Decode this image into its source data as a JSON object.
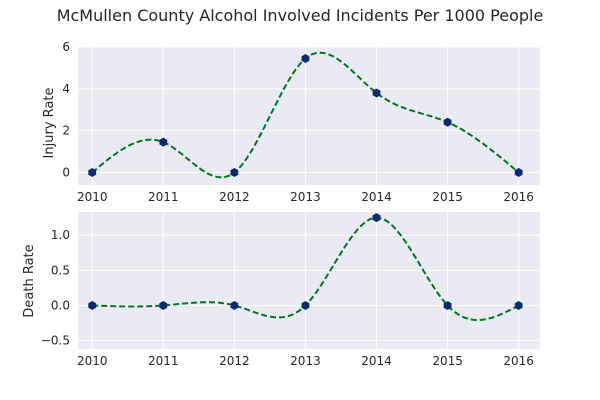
{
  "figure": {
    "title": "McMullen County Alcohol Involved Incidents Per 1000 People"
  },
  "colors": {
    "plot_background": "#eaeaf2",
    "curve": "#00741f",
    "marker": "#0b2a6e",
    "text": "#262626"
  },
  "chart_data": [
    {
      "type": "line",
      "style": "smoothed dashed curve with hexagon markers",
      "x": [
        2010,
        2011,
        2012,
        2013,
        2014,
        2015,
        2016
      ],
      "values": [
        0,
        1.45,
        0,
        5.45,
        3.8,
        2.4,
        0
      ],
      "xticks": [
        "2010",
        "2011",
        "2012",
        "2013",
        "2014",
        "2015",
        "2016"
      ],
      "yticks": [
        "0",
        "2",
        "4",
        "6"
      ],
      "ylabel": "Injury Rate",
      "xlim": [
        2009.8,
        2016.3
      ],
      "ylim": [
        -0.6,
        6.0
      ],
      "grid": true
    },
    {
      "type": "line",
      "style": "smoothed dashed curve with hexagon markers",
      "x": [
        2010,
        2011,
        2012,
        2013,
        2014,
        2015,
        2016
      ],
      "values": [
        0,
        0,
        0,
        0,
        1.25,
        0,
        0
      ],
      "xticks": [
        "2010",
        "2011",
        "2012",
        "2013",
        "2014",
        "2015",
        "2016"
      ],
      "yticks": [
        "1.0",
        "0.5",
        "0.0",
        "−0.5"
      ],
      "ylabel": "Death Rate",
      "xlim": [
        2009.8,
        2016.3
      ],
      "ylim": [
        -0.62,
        1.33
      ],
      "grid": true
    }
  ]
}
